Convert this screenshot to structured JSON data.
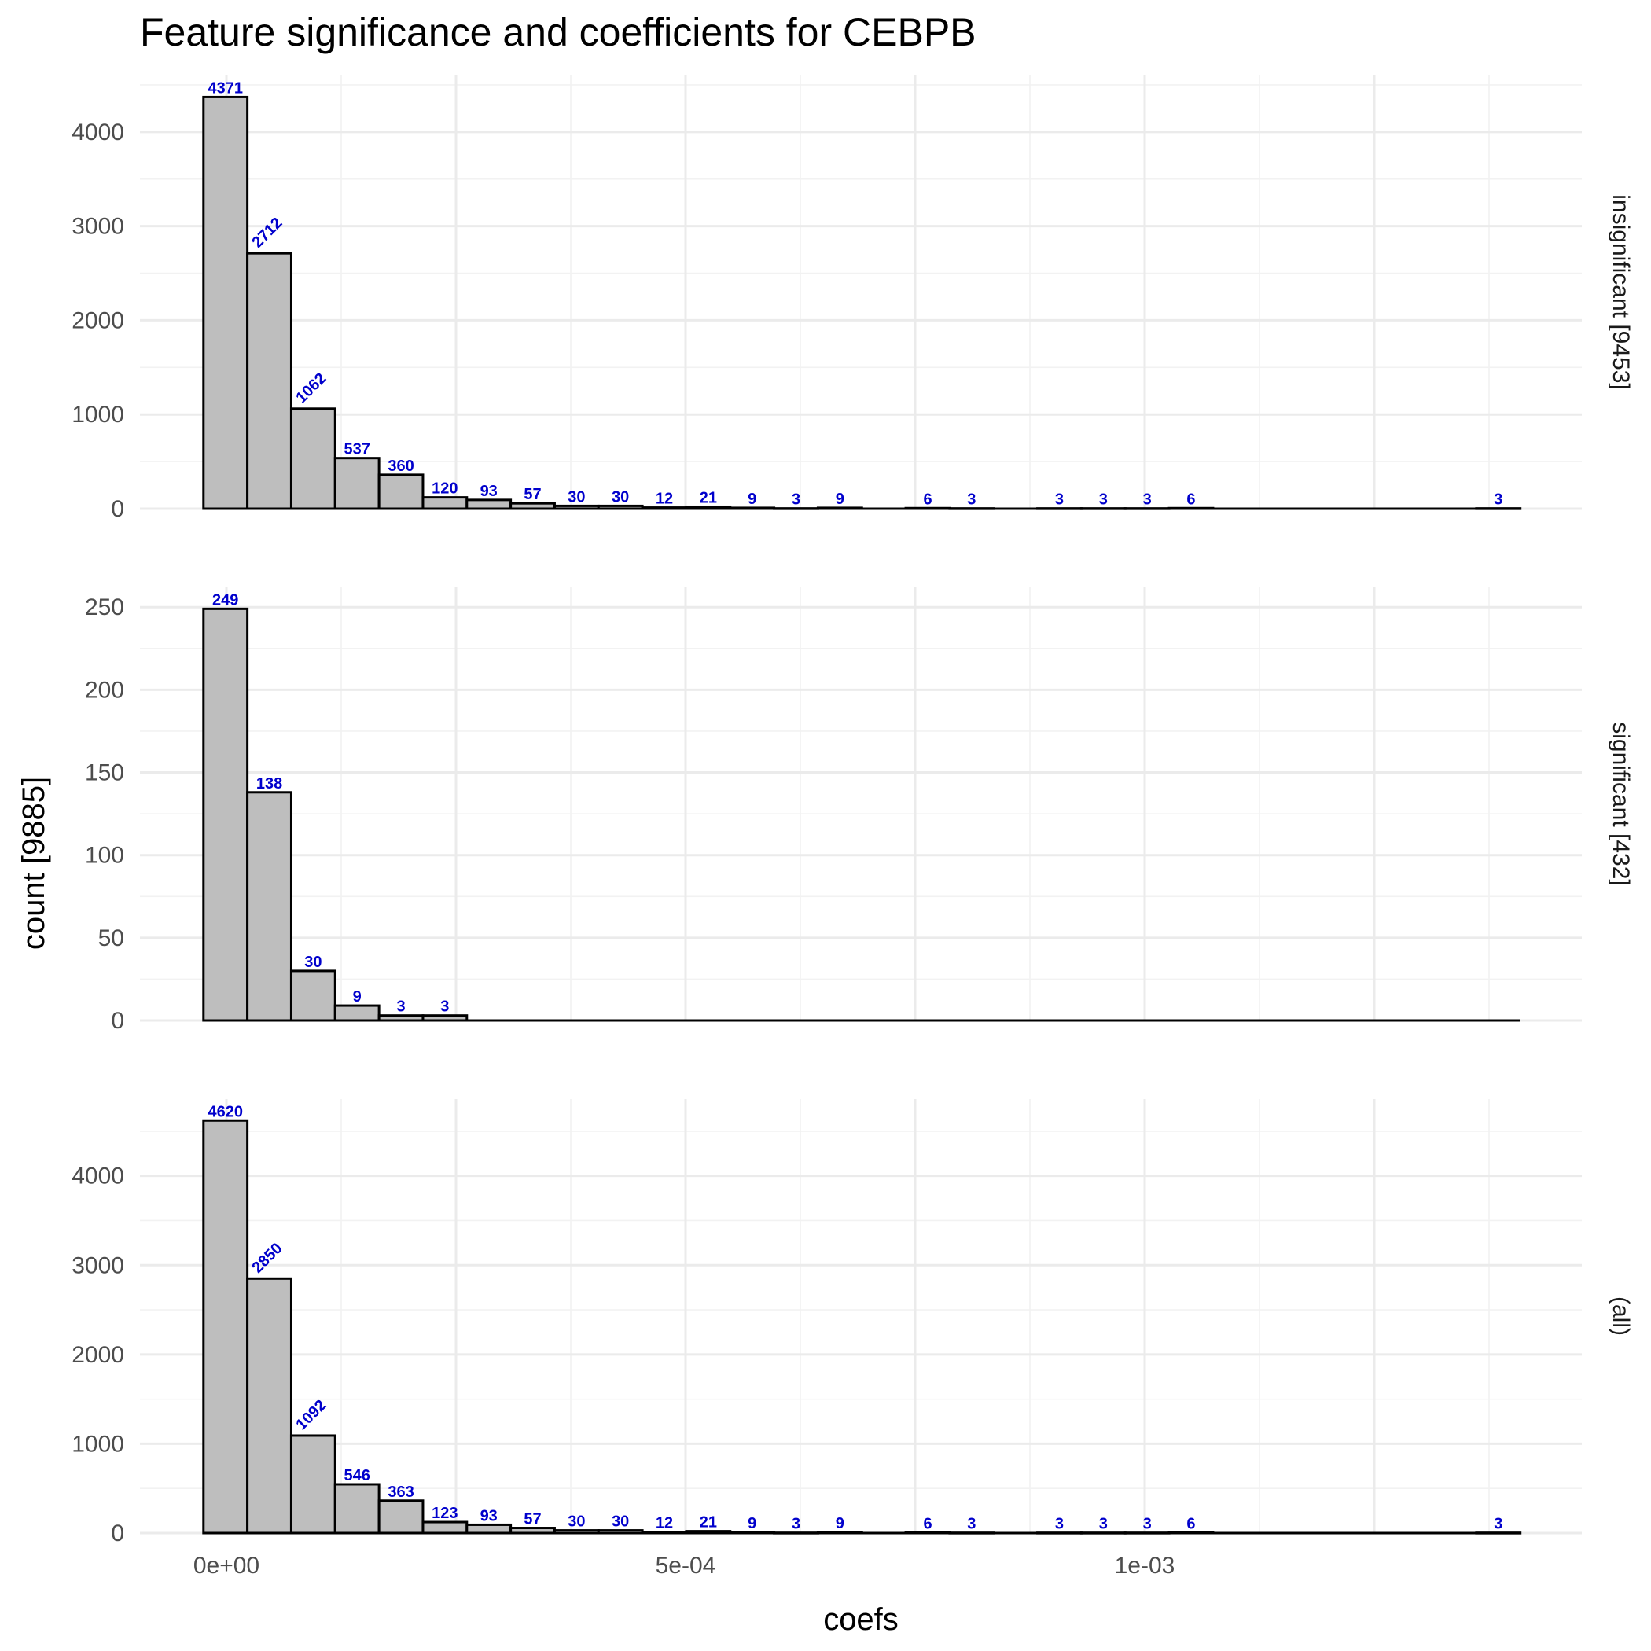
{
  "chart_data": {
    "type": "bar",
    "title": "Feature significance and coefficients for CEBPB",
    "xlabel": "coefs",
    "ylabel": "count [9885]",
    "colors": {
      "bar_fill": "#bebebe",
      "bar_stroke": "#000000",
      "label": "#0000cc"
    },
    "x_ticks": [
      {
        "value": 0,
        "label": "0e+00"
      },
      {
        "value": 0.0005,
        "label": "5e-04"
      },
      {
        "value": 0.001,
        "label": "1e-03"
      }
    ],
    "xlim": [
      -9.45e-05,
      0.0015
    ],
    "bin_start": -2.5e-05,
    "bin_width": 4.78e-05,
    "grid": true,
    "panels": [
      {
        "strip": "insignificant [9453]",
        "ylim": [
          0,
          4600
        ],
        "y_ticks": [
          0,
          1000,
          2000,
          3000,
          4000
        ],
        "counts": [
          4371,
          2712,
          1062,
          537,
          360,
          120,
          93,
          57,
          30,
          30,
          12,
          21,
          9,
          3,
          9,
          0,
          6,
          3,
          0,
          3,
          3,
          3,
          6,
          0,
          0,
          0,
          0,
          0,
          0,
          3
        ],
        "labels": [
          "4371",
          "2712",
          "1062",
          "537",
          "360",
          "120",
          "93",
          "57",
          "30",
          "30",
          "12",
          "21",
          "9",
          "3",
          "9",
          "",
          "6",
          "3",
          "",
          "3",
          "3",
          "3",
          "6",
          "",
          "",
          "",
          "",
          "",
          "",
          "3"
        ]
      },
      {
        "strip": "significant [432]",
        "ylim": [
          0,
          262
        ],
        "y_ticks": [
          0,
          50,
          100,
          150,
          200,
          250
        ],
        "counts": [
          249,
          138,
          30,
          9,
          3,
          3,
          0,
          0,
          0,
          0,
          0,
          0,
          0,
          0,
          0,
          0,
          0,
          0,
          0,
          0,
          0,
          0,
          0,
          0,
          0,
          0,
          0,
          0,
          0,
          0
        ],
        "labels": [
          "249",
          "138",
          "30",
          "9",
          "3",
          "3",
          "",
          "",
          "",
          "",
          "",
          "",
          "",
          "",
          "",
          "",
          "",
          "",
          "",
          "",
          "",
          "",
          "",
          "",
          "",
          "",
          "",
          "",
          "",
          ""
        ]
      },
      {
        "strip": "(all)",
        "ylim": [
          0,
          4860
        ],
        "y_ticks": [
          0,
          1000,
          2000,
          3000,
          4000
        ],
        "counts": [
          4620,
          2850,
          1092,
          546,
          363,
          123,
          93,
          57,
          30,
          30,
          12,
          21,
          9,
          3,
          9,
          0,
          6,
          3,
          0,
          3,
          3,
          3,
          6,
          0,
          0,
          0,
          0,
          0,
          0,
          3
        ],
        "labels": [
          "4620",
          "2850",
          "1092",
          "546",
          "363",
          "123",
          "93",
          "57",
          "30",
          "30",
          "12",
          "21",
          "9",
          "3",
          "9",
          "",
          "6",
          "3",
          "",
          "3",
          "3",
          "3",
          "6",
          "",
          "",
          "",
          "",
          "",
          "",
          "3"
        ]
      }
    ]
  }
}
